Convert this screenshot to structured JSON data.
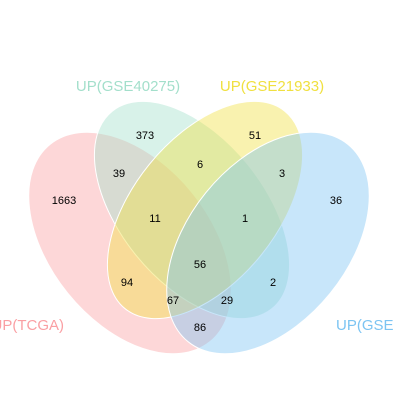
{
  "sets": [
    {
      "key": "A",
      "label": "UP(TCGA)",
      "color": "#fa9fa3"
    },
    {
      "key": "B",
      "label": "UP(GSE40275)",
      "color": "#a3dfcb"
    },
    {
      "key": "C",
      "label": "UP(GSE21933)",
      "color": "#f0e040"
    },
    {
      "key": "D",
      "label": "UP(GSE",
      "color": "#7cc4f2"
    }
  ],
  "regions": {
    "A": "1663",
    "B": "373",
    "C": "51",
    "D": "36",
    "AB": "39",
    "BC": "6",
    "CD": "3",
    "AC": "94",
    "BD": "2",
    "AD": "86",
    "ABC": "11",
    "BCD": "1",
    "ACD": "29",
    "ABD": "67",
    "ABCD": "56"
  }
}
